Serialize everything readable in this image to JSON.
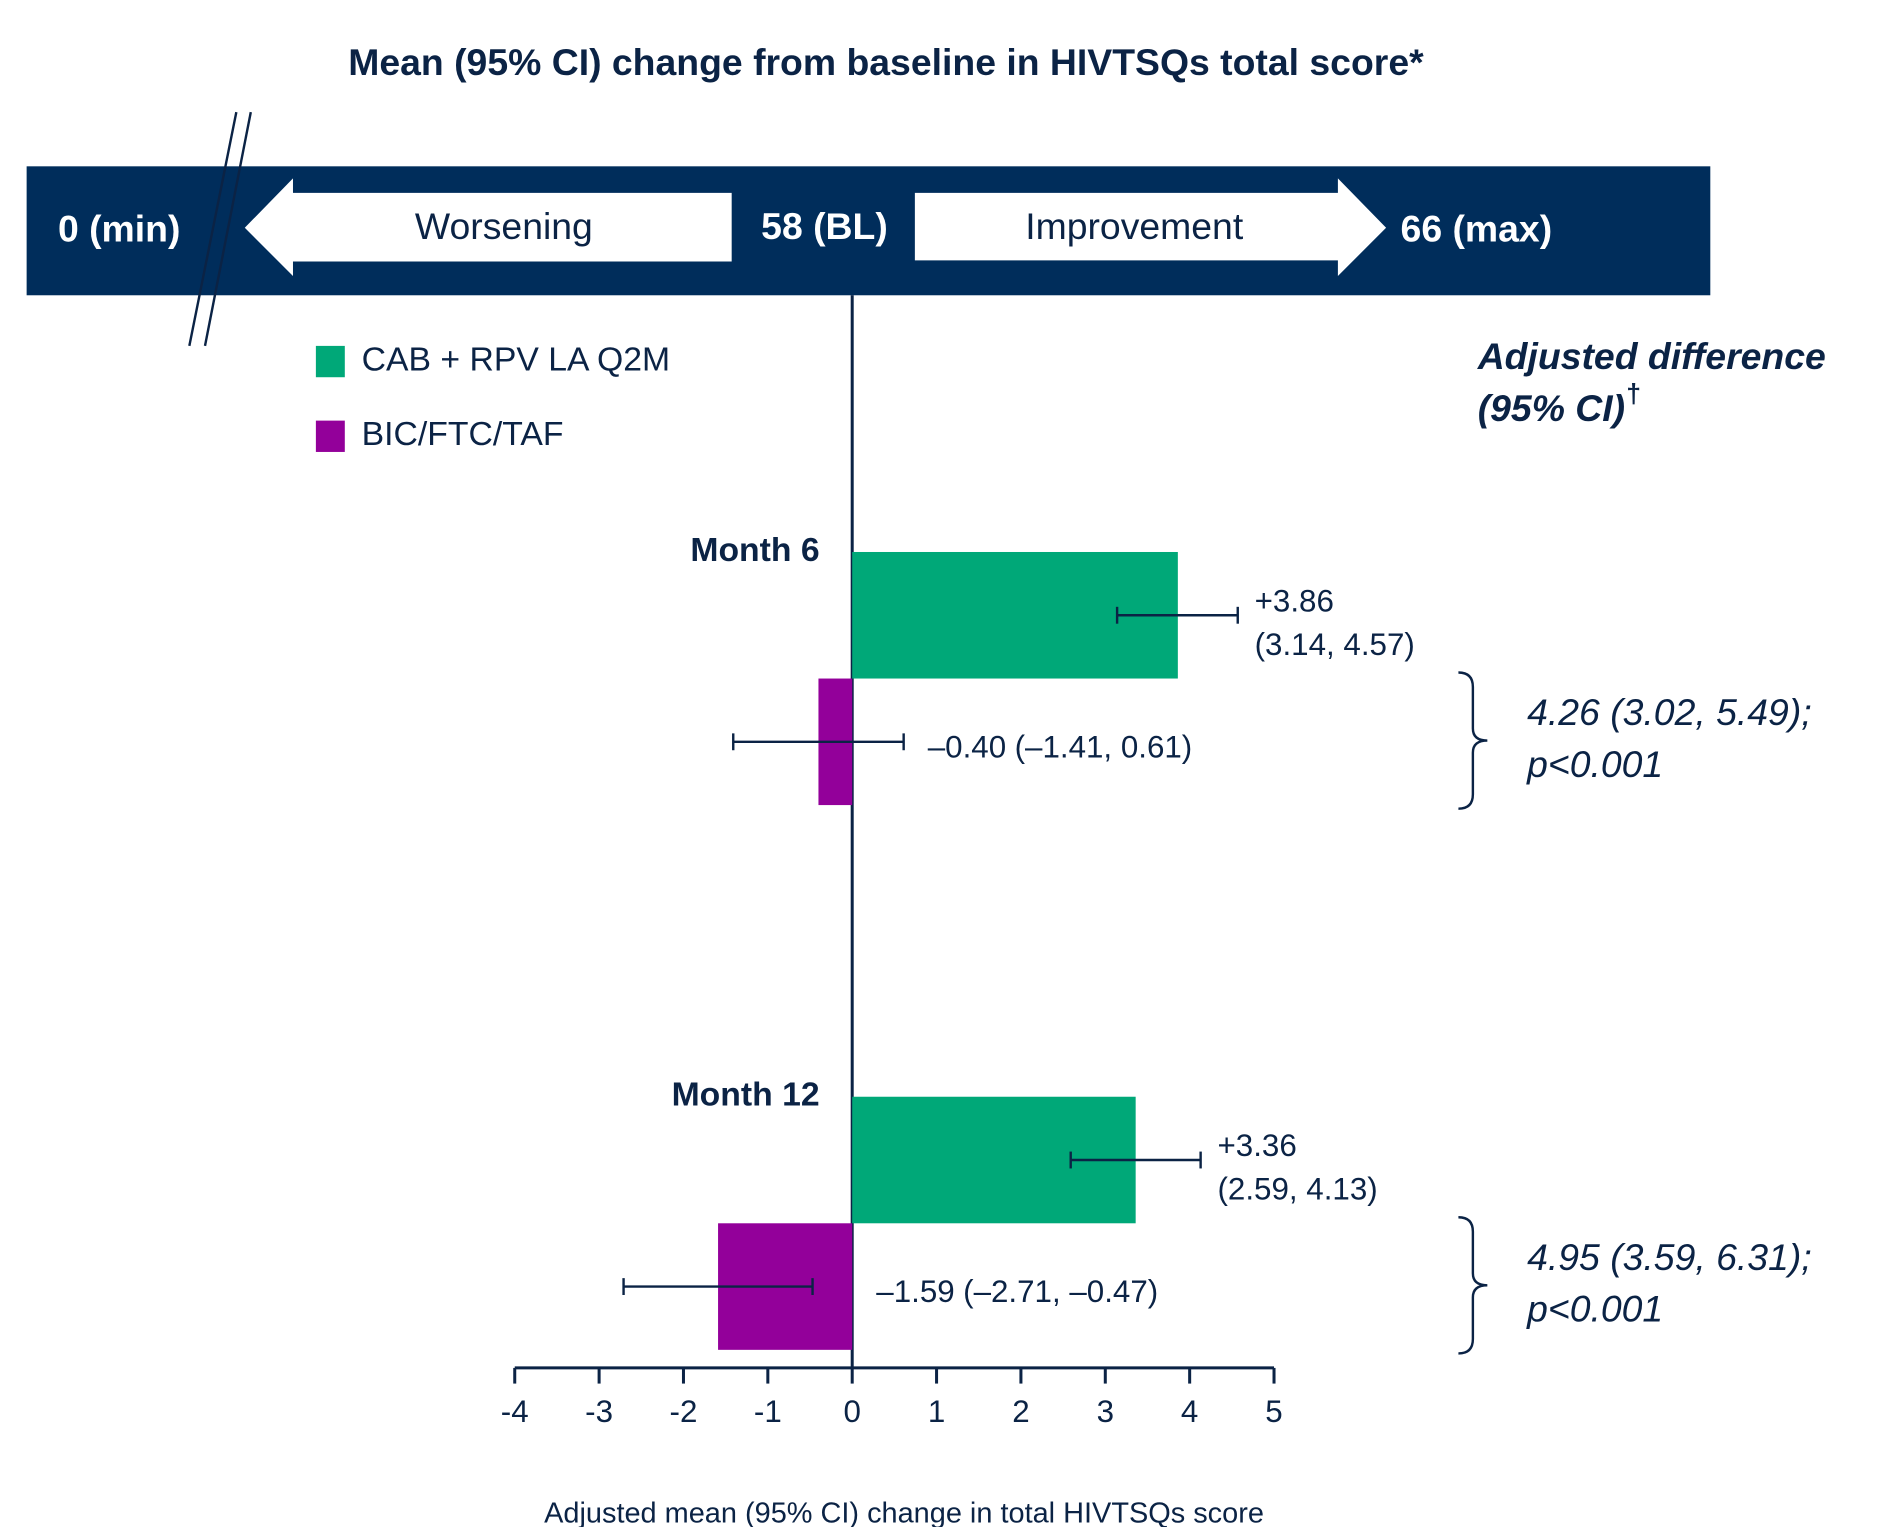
{
  "chart_data": {
    "type": "hbar_ci",
    "title": "Mean (95% CI) change from baseline in HIVTSQs total score*",
    "scale_band": {
      "min_label": "0 (min)",
      "left_arrow": "Worsening",
      "baseline_label": "58 (BL)",
      "right_arrow": "Improvement",
      "max_label": "66 (max)"
    },
    "categories": [
      "Month 6",
      "Month 12"
    ],
    "series": [
      {
        "name": "CAB + RPV LA Q2M",
        "color": "#00a878",
        "values": [
          3.86,
          3.36
        ],
        "value_labels": [
          "+3.86",
          "+3.36"
        ],
        "ci_low": [
          3.14,
          2.59
        ],
        "ci_high": [
          4.57,
          4.13
        ],
        "ci_labels": [
          "(3.14, 4.57)",
          "(2.59, 4.13)"
        ]
      },
      {
        "name": "BIC/FTC/TAF",
        "color": "#93009a",
        "values": [
          -0.4,
          -1.59
        ],
        "value_labels": [
          "–0.40",
          "–1.59"
        ],
        "ci_low": [
          -1.41,
          -2.71
        ],
        "ci_high": [
          0.61,
          -0.47
        ],
        "ci_labels": [
          "(–1.41, 0.61)",
          "(–2.71, –0.47)"
        ]
      }
    ],
    "xlim": [
      -4,
      5
    ],
    "xticks": [
      -4,
      -3,
      -2,
      -1,
      0,
      1,
      2,
      3,
      4,
      5
    ],
    "xlabel": "Adjusted mean (95% CI) change in total HIVTSQs score",
    "difference_header": [
      "Adjusted difference",
      "(95% CI)"
    ],
    "difference_header_mark": "†",
    "differences": [
      {
        "estimate": "4.26 (3.02, 5.49);",
        "p": "p<0.001"
      },
      {
        "estimate": "4.95 (3.59, 6.31);",
        "p": "p<0.001"
      }
    ]
  }
}
